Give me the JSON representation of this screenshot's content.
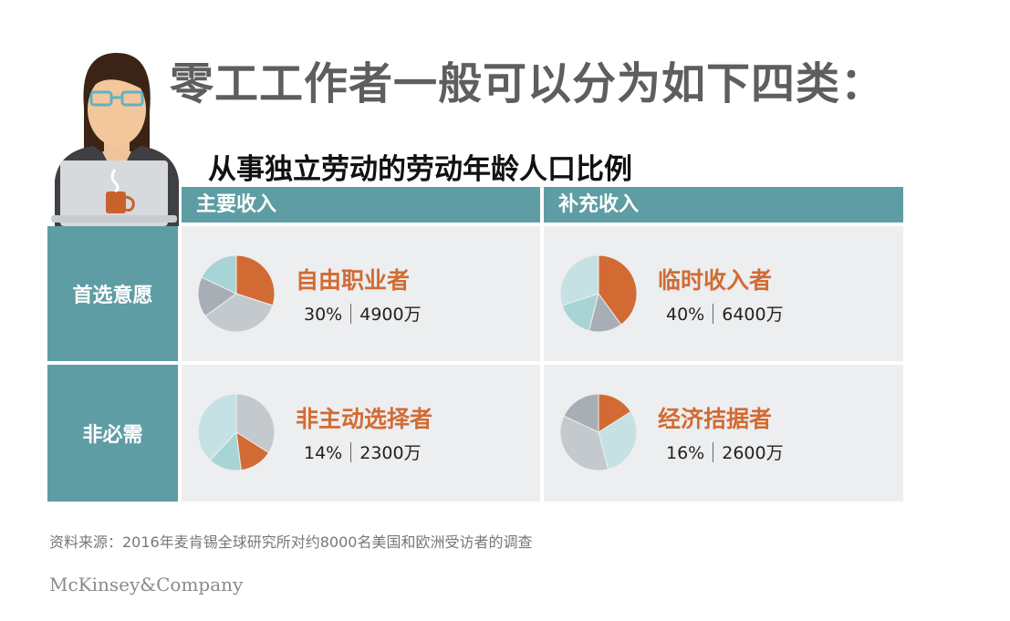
{
  "title": "零工工作者一般可以分为如下四类：",
  "subtitle": "从事独立劳动的劳动年龄人口比例",
  "columns": [
    "主要收入",
    "补充收入"
  ],
  "rows": [
    "首选意愿",
    "非必需"
  ],
  "source": "资料来源：2016年麦肯锡全球研究所对约8000名美国和欧洲受访者的调查",
  "brand": "McKinsey&Company",
  "colors": {
    "header": "#5f9da4",
    "highlight": "#d26b33",
    "cell_bg": "#eceef0",
    "title": "#5e5e5e"
  },
  "chart_data": [
    {
      "type": "pie",
      "name": "自由职业者",
      "row": "首选意愿",
      "column": "主要收入",
      "highlight_value": 30,
      "percent_label": "30%",
      "count_label": "4900万",
      "slices": [
        {
          "value": 30,
          "color": "#d26b33"
        },
        {
          "value": 35,
          "color": "#c4c9ce"
        },
        {
          "value": 17,
          "color": "#a8aeb5"
        },
        {
          "value": 18,
          "color": "#a8d4d6"
        }
      ]
    },
    {
      "type": "pie",
      "name": "临时收入者",
      "row": "首选意愿",
      "column": "补充收入",
      "highlight_value": 40,
      "percent_label": "40%",
      "count_label": "6400万",
      "slices": [
        {
          "value": 40,
          "color": "#d26b33"
        },
        {
          "value": 14,
          "color": "#a8aeb5"
        },
        {
          "value": 16,
          "color": "#a8d4d6"
        },
        {
          "value": 30,
          "color": "#c6e1e4"
        }
      ]
    },
    {
      "type": "pie",
      "name": "非主动选择者",
      "row": "非必需",
      "column": "主要收入",
      "highlight_value": 14,
      "percent_label": "14%",
      "count_label": "2300万",
      "slices": [
        {
          "value": 34,
          "color": "#c4c9ce"
        },
        {
          "value": 14,
          "color": "#d26b33"
        },
        {
          "value": 14,
          "color": "#a8d4d6"
        },
        {
          "value": 38,
          "color": "#c6e1e4"
        }
      ]
    },
    {
      "type": "pie",
      "name": "经济拮据者",
      "row": "非必需",
      "column": "补充收入",
      "highlight_value": 16,
      "percent_label": "16%",
      "count_label": "2600万",
      "slices": [
        {
          "value": 16,
          "color": "#d26b33"
        },
        {
          "value": 30,
          "color": "#c6e1e4"
        },
        {
          "value": 36,
          "color": "#c4c9ce"
        },
        {
          "value": 18,
          "color": "#a8aeb5"
        }
      ]
    }
  ]
}
